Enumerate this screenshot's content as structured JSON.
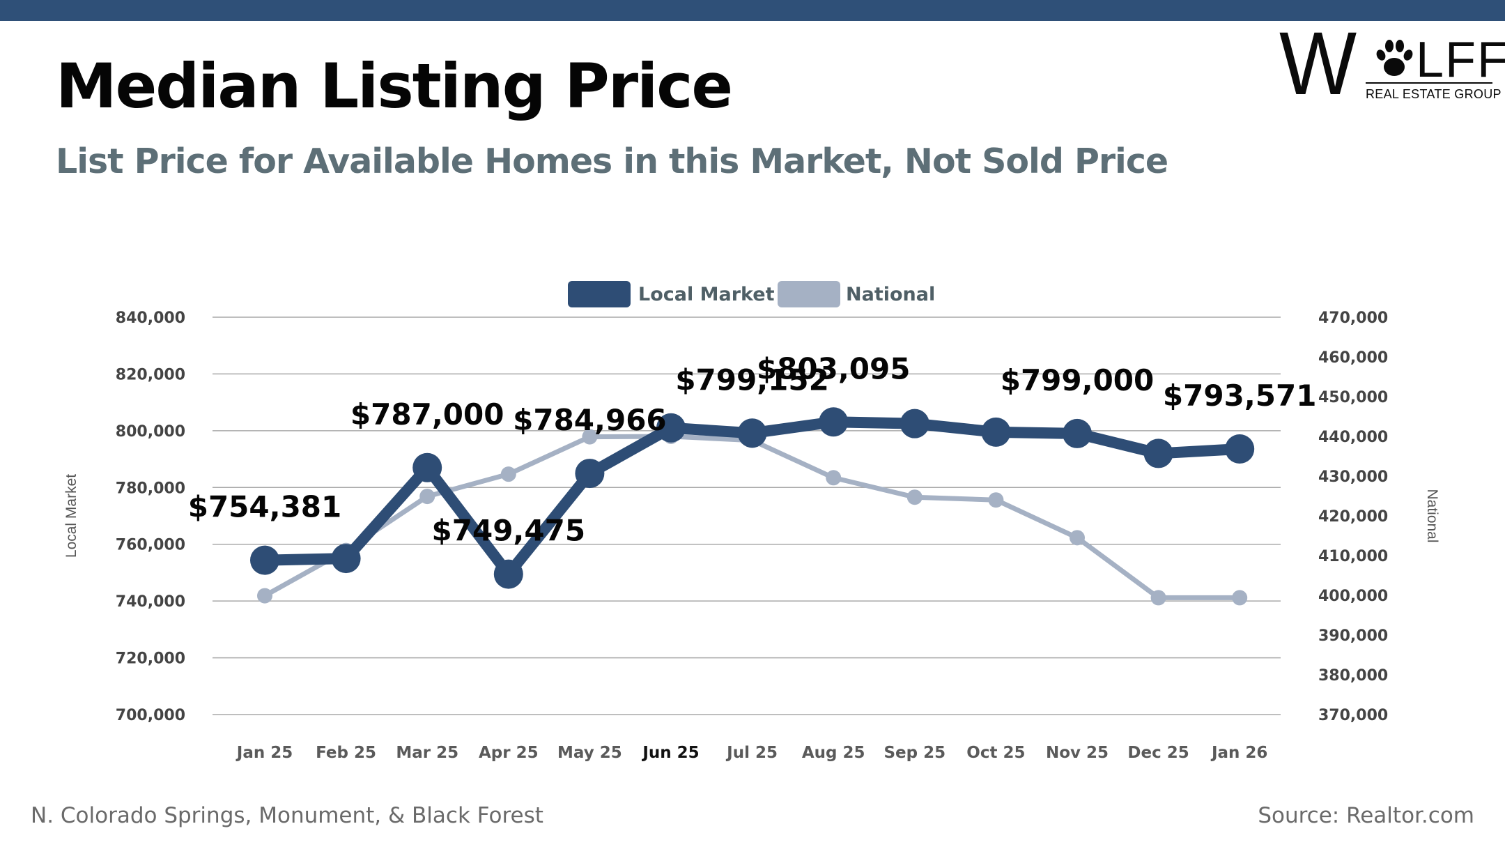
{
  "header": {
    "title": "Median Listing Price",
    "subtitle": "List Price for Available Homes in this Market, Not Sold Price"
  },
  "logo": {
    "letter_w": "W",
    "letters_lff": "LFF",
    "tagline": "REAL ESTATE GROUP",
    "icon": "paw-print-icon"
  },
  "footer": {
    "region": "N. Colorado Springs, Monument, & Black Forest",
    "source": "Source: Realtor.com"
  },
  "colors": {
    "brand": "#2f5078",
    "local": "#2e4d75",
    "national": "#a5b1c4",
    "grid": "#a9a9a9",
    "axis_text": "#444444",
    "subtitle": "#5d6f77"
  },
  "chart_data": {
    "type": "line",
    "categories": [
      "Jan 25",
      "Feb 25",
      "Mar 25",
      "Apr 25",
      "May 25",
      "Jun 25",
      "Jul 25",
      "Aug 25",
      "Sep 25",
      "Oct 25",
      "Nov 25",
      "Dec 25",
      "Jan 26"
    ],
    "highlighted_category": "Jun 25",
    "series": [
      {
        "name": "Local Market",
        "axis": "left",
        "values": [
          754381,
          755000,
          787000,
          749475,
          784966,
          801000,
          799152,
          803095,
          802500,
          799500,
          799000,
          792000,
          793571
        ],
        "data_labels": [
          {
            "index": 0,
            "text": "$754,381"
          },
          {
            "index": 2,
            "text": "$787,000"
          },
          {
            "index": 3,
            "text": "$749,475"
          },
          {
            "index": 4,
            "text": "$784,966"
          },
          {
            "index": 6,
            "text": "$799,152"
          },
          {
            "index": 7,
            "text": "$803,095"
          },
          {
            "index": 10,
            "text": "$799,000"
          },
          {
            "index": 12,
            "text": "$793,571"
          }
        ]
      },
      {
        "name": "National",
        "axis": "right",
        "values": [
          399900,
          411300,
          424900,
          430500,
          439900,
          440000,
          439000,
          429600,
          424700,
          424000,
          414500,
          399400,
          399400
        ]
      }
    ],
    "y_left": {
      "label": "Local Market",
      "min": 700000,
      "max": 840000,
      "ticks": [
        "700,000",
        "720,000",
        "740,000",
        "760,000",
        "780,000",
        "800,000",
        "820,000",
        "840,000"
      ]
    },
    "y_right": {
      "label": "National",
      "min": 370000,
      "max": 470000,
      "ticks": [
        "370,000",
        "380,000",
        "390,000",
        "400,000",
        "410,000",
        "420,000",
        "430,000",
        "440,000",
        "450,000",
        "460,000",
        "470,000"
      ]
    },
    "legend": {
      "position": "top-center",
      "entries": [
        "Local Market",
        "National"
      ]
    },
    "grid": true
  }
}
